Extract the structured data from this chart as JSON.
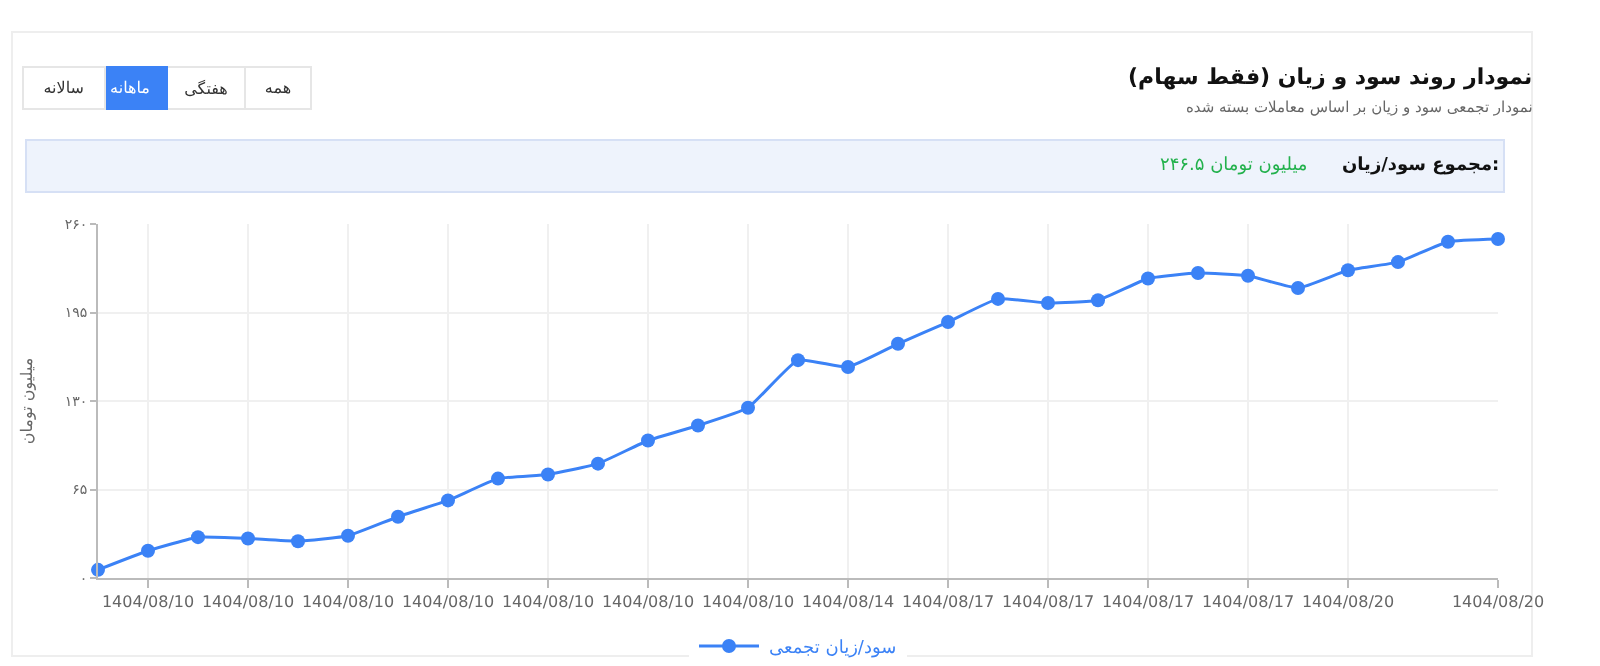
{
  "chart_data": {
    "type": "line",
    "title": "نمودار روند سود و زیان (فقط سهام)",
    "subtitle": "نمودار تجمعی سود و زیان بر اساس معاملات بسته شده",
    "ylabel": "میلیون تومان",
    "annotations": [
      "مجموع سود/زیان:",
      "۲۴۶.۵ میلیون تومان",
      "همه",
      "هفتگی",
      "ماهانه",
      "سالانه"
    ],
    "categories": [
      null,
      "1404/08/10",
      null,
      "1404/08/10",
      null,
      "1404/08/10",
      null,
      "1404/08/10",
      null,
      "1404/08/10",
      null,
      "1404/08/10",
      null,
      "1404/08/10",
      null,
      "1404/08/14",
      null,
      "1404/08/17",
      null,
      "1404/08/17",
      null,
      "1404/08/17",
      null,
      "1404/08/17",
      null,
      "1404/08/20",
      null,
      null,
      "1404/08/20"
    ],
    "series": [
      {
        "name": "سود/زیان تجمعی",
        "color": "#3b82f6",
        "values": [
          6,
          20,
          30,
          29,
          27,
          31,
          45,
          57,
          73,
          76,
          84,
          101,
          112,
          125,
          160,
          155,
          172,
          188,
          205,
          202,
          204,
          220,
          224,
          222,
          213,
          226,
          232,
          247,
          249
        ]
      }
    ],
    "ylim": [
      0,
      260
    ],
    "yticks": [
      {
        "value": 0,
        "label": "۰"
      },
      {
        "value": 65,
        "label": "۶۵"
      },
      {
        "value": 130,
        "label": "۱۳۰"
      },
      {
        "value": 195,
        "label": "۱۹۵"
      },
      {
        "value": 260,
        "label": "۲۶۰"
      }
    ],
    "grid": true,
    "legend": "bottom",
    "marker": "circle",
    "line_style": "solid"
  }
}
